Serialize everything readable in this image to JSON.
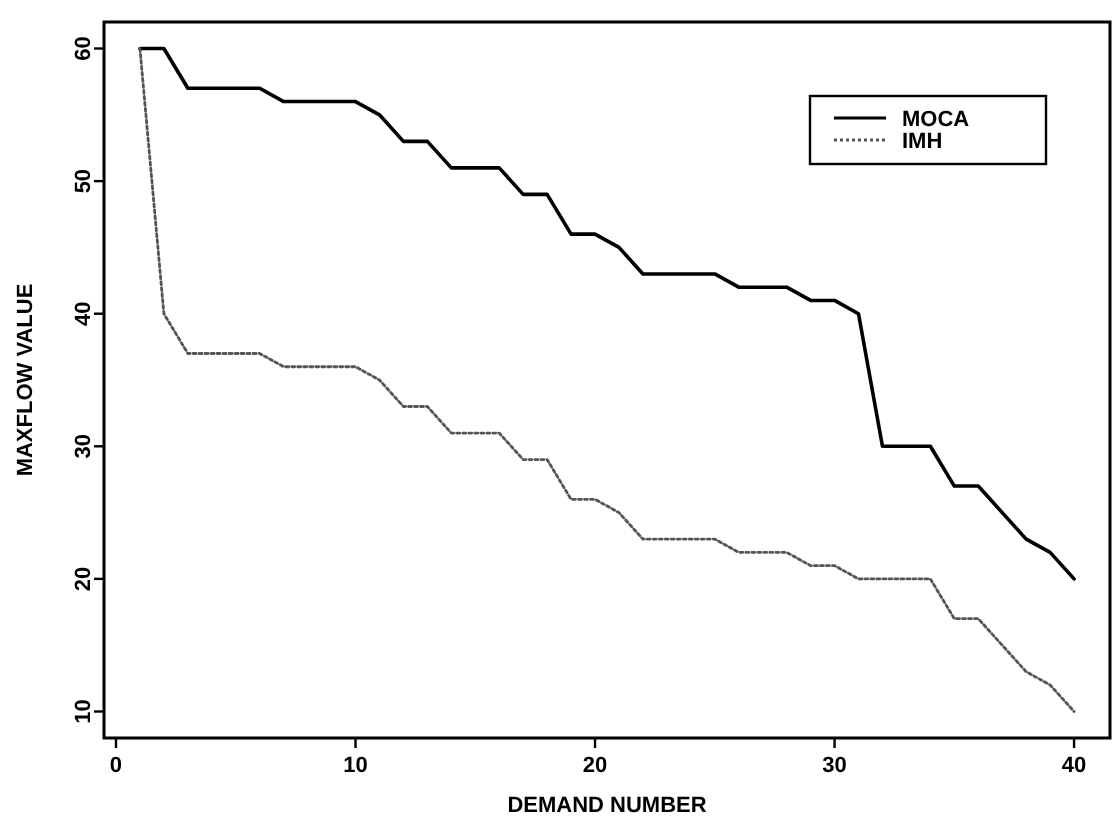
{
  "chart_data": {
    "type": "line",
    "xlabel": "DEMAND NUMBER",
    "ylabel": "MAXFLOW VALUE",
    "x": [
      1,
      2,
      3,
      4,
      5,
      6,
      7,
      8,
      9,
      10,
      11,
      12,
      13,
      14,
      15,
      16,
      17,
      18,
      19,
      20,
      21,
      22,
      23,
      24,
      25,
      26,
      27,
      28,
      29,
      30,
      31,
      32,
      33,
      34,
      35,
      36,
      37,
      38,
      39,
      40
    ],
    "series": [
      {
        "name": "MOCA",
        "color": "#000000",
        "line_style": "solid",
        "values": [
          60,
          60,
          57,
          57,
          57,
          57,
          56,
          56,
          56,
          56,
          55,
          53,
          53,
          51,
          51,
          51,
          49,
          49,
          46,
          46,
          45,
          43,
          43,
          43,
          43,
          42,
          42,
          42,
          41,
          41,
          40,
          30,
          30,
          30,
          27,
          27,
          25,
          23,
          22,
          20
        ]
      },
      {
        "name": "IMH",
        "color": "#555555",
        "line_style": "dotted",
        "values": [
          60,
          40,
          37,
          37,
          37,
          37,
          36,
          36,
          36,
          36,
          35,
          33,
          33,
          31,
          31,
          31,
          29,
          29,
          26,
          26,
          25,
          23,
          23,
          23,
          23,
          22,
          22,
          22,
          21,
          21,
          20,
          20,
          20,
          20,
          17,
          17,
          15,
          13,
          12,
          10
        ]
      }
    ],
    "xlim": [
      -0.5,
      41.5
    ],
    "ylim": [
      8,
      62
    ],
    "xticks": [
      0,
      10,
      20,
      30,
      40
    ],
    "yticks": [
      10,
      20,
      30,
      40,
      50,
      60
    ],
    "grid": false,
    "legend": "top right",
    "marker": "none"
  }
}
